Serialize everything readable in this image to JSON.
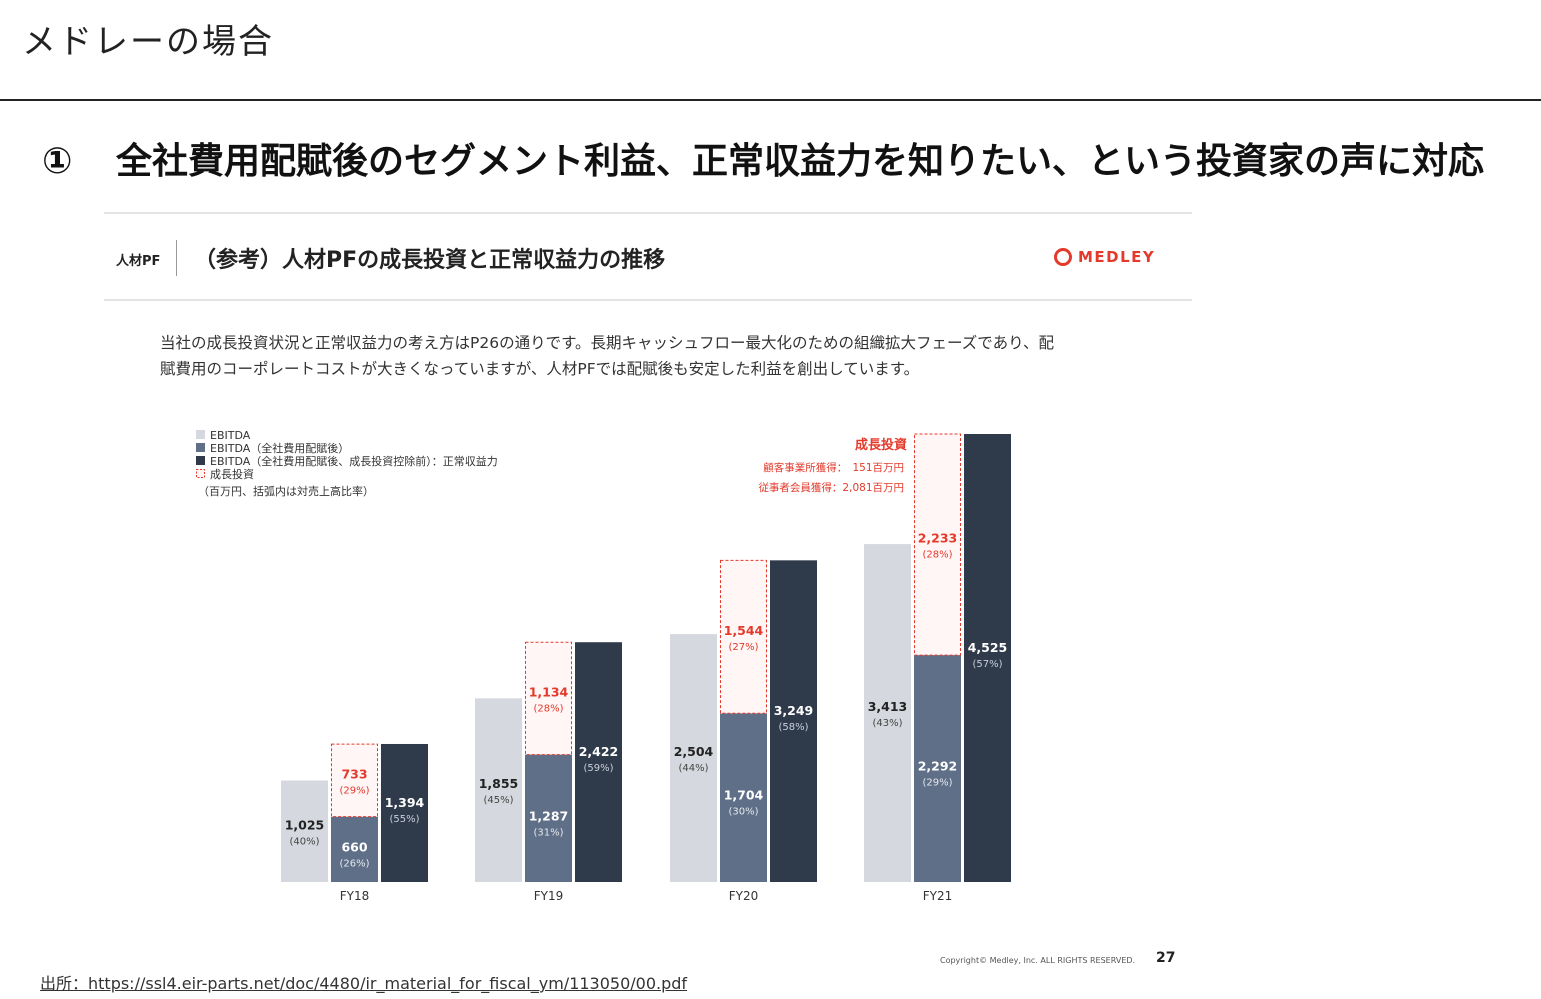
{
  "page": {
    "title": "メドレーの場合",
    "headline_number": "①",
    "headline": "全社費用配賦後のセグメント利益、正常収益力を知りたい、という投資家の声に対応",
    "source": "出所：https://ssl4.eir-parts.net/doc/4480/ir_material_for_fiscal_ym/113050/00.pdf"
  },
  "slide": {
    "segment_label": "人材PF",
    "heading": "（参考）人材PFの成長投資と正常収益力の推移",
    "logo_text": "MEDLEY",
    "intro_line1": "当社の成長投資状況と正常収益力の考え方はP26の通りです。長期キャッシュフロー最大化のための組織拡大フェーズであり、配",
    "intro_line2": "賦費用のコーポレートコストが大きくなっていますが、人材PFでは配賦後も安定した利益を創出しています。",
    "copyright": "Copyright© Medley, Inc. ALL RIGHTS RESERVED.",
    "page_number": "27"
  },
  "legend": {
    "items": [
      "EBITDA",
      "EBITDA（全社費用配賦後）",
      "EBITDA（全社費用配賦後、成長投資控除前）：正常収益力",
      "成長投資"
    ],
    "note": "（百万円、括弧内は対売上高比率）"
  },
  "annotation": {
    "title": "成長投資",
    "line1": "顧客事業所獲得：　151百万円",
    "line2": "従事者会員獲得：2,081百万円"
  },
  "colors": {
    "ebitda": "#d5d8de",
    "allocated": "#5f6f87",
    "normal": "#2f3a4b",
    "invest": "#e33a2c",
    "invest_fill": "#fff6f5"
  },
  "chart_data": {
    "type": "bar",
    "categories": [
      "FY18",
      "FY19",
      "FY20",
      "FY21"
    ],
    "series": [
      {
        "name": "EBITDA",
        "values": [
          1025,
          1855,
          2504,
          3413
        ],
        "labels": [
          "1,025",
          "1,855",
          "2,504",
          "3,413"
        ],
        "pct": [
          "(40%)",
          "(45%)",
          "(44%)",
          "(43%)"
        ]
      },
      {
        "name": "EBITDA（全社費用配賦後）",
        "values": [
          660,
          1287,
          1704,
          2292
        ],
        "labels": [
          "660",
          "1,287",
          "1,704",
          "2,292"
        ],
        "pct": [
          "(26%)",
          "(31%)",
          "(30%)",
          "(29%)"
        ]
      },
      {
        "name": "成長投資",
        "values": [
          733,
          1134,
          1544,
          2233
        ],
        "labels": [
          "733",
          "1,134",
          "1,544",
          "2,233"
        ],
        "pct": [
          "(29%)",
          "(28%)",
          "(27%)",
          "(28%)"
        ]
      },
      {
        "name": "EBITDA（全社費用配賦後、成長投資控除前）：正常収益力",
        "values": [
          1394,
          2422,
          3249,
          4525
        ],
        "labels": [
          "1,394",
          "2,422",
          "3,249",
          "4,525"
        ],
        "pct": [
          "(55%)",
          "(59%)",
          "(58%)",
          "(57%)"
        ]
      }
    ],
    "stacked_pair": [
      "EBITDA（全社費用配賦後）",
      "成長投資"
    ],
    "ylim": [
      0,
      4525
    ],
    "grid": false,
    "legend_position": "top-left"
  }
}
